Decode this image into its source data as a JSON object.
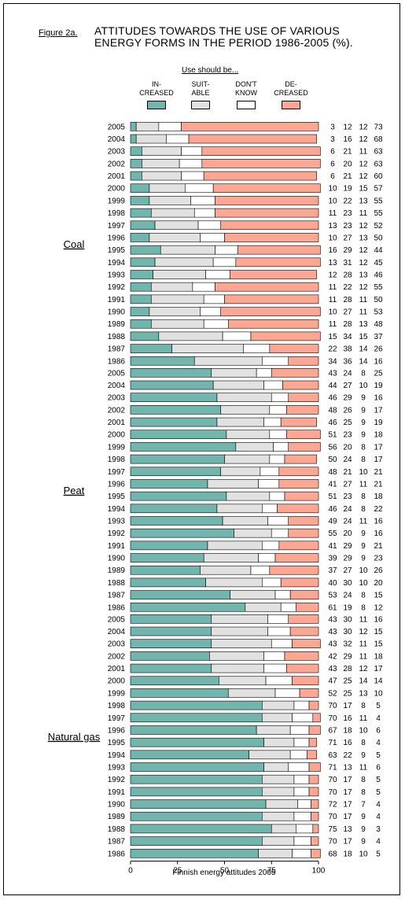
{
  "figure_label": "Figure 2a.",
  "title_lines": [
    "ATTITUDES TOWARDS THE USE OF VARIOUS",
    "ENERGY FORMS IN THE PERIOD 1986-2005 (%)."
  ],
  "legend_heading": "Use should be...",
  "colors": {
    "increased": "#71b5ad",
    "suitable": "#e1e1e1",
    "dont_know": "#ffffff",
    "decreased": "#fca793",
    "edge": "#000000"
  },
  "chart_data": {
    "type": "bar",
    "orientation": "horizontal",
    "stacked": true,
    "xlabel": "Finnish energy attitudes 2005",
    "xlim": [
      0,
      100
    ],
    "xticks": [
      0,
      25,
      50,
      75,
      100
    ],
    "series_names": [
      [
        "IN-",
        "CREASED"
      ],
      [
        "SUIT-",
        "ABLE"
      ],
      [
        "DON'T",
        "KNOW"
      ],
      [
        "DE-",
        "CREASED"
      ]
    ],
    "groups": [
      {
        "name": "Coal",
        "years": [
          "2005",
          "2004",
          "2003",
          "2002",
          "2001",
          "2000",
          "1999",
          "1998",
          "1997",
          "1996",
          "1995",
          "1994",
          "1993",
          "1992",
          "1991",
          "1990",
          "1989",
          "1988",
          "1987",
          "1986"
        ],
        "values": [
          [
            3,
            12,
            12,
            73
          ],
          [
            3,
            16,
            12,
            68
          ],
          [
            6,
            21,
            11,
            63
          ],
          [
            6,
            20,
            12,
            63
          ],
          [
            6,
            21,
            12,
            60
          ],
          [
            10,
            19,
            15,
            57
          ],
          [
            10,
            22,
            13,
            55
          ],
          [
            11,
            23,
            11,
            55
          ],
          [
            13,
            23,
            12,
            52
          ],
          [
            10,
            27,
            13,
            50
          ],
          [
            16,
            29,
            12,
            44
          ],
          [
            13,
            31,
            12,
            45
          ],
          [
            12,
            28,
            13,
            46
          ],
          [
            11,
            22,
            12,
            55
          ],
          [
            11,
            28,
            11,
            50
          ],
          [
            10,
            27,
            11,
            53
          ],
          [
            11,
            28,
            13,
            48
          ],
          [
            15,
            34,
            15,
            37
          ],
          [
            22,
            38,
            14,
            26
          ],
          [
            34,
            36,
            14,
            16
          ]
        ]
      },
      {
        "name": "Peat",
        "years": [
          "2005",
          "2004",
          "2003",
          "2002",
          "2001",
          "2000",
          "1999",
          "1998",
          "1997",
          "1996",
          "1995",
          "1994",
          "1993",
          "1992",
          "1991",
          "1990",
          "1989",
          "1988",
          "1987",
          "1986"
        ],
        "values": [
          [
            43,
            24,
            8,
            25
          ],
          [
            44,
            27,
            10,
            19
          ],
          [
            46,
            29,
            9,
            16
          ],
          [
            48,
            26,
            9,
            17
          ],
          [
            46,
            25,
            9,
            19
          ],
          [
            51,
            23,
            9,
            18
          ],
          [
            56,
            20,
            8,
            17
          ],
          [
            50,
            24,
            8,
            17
          ],
          [
            48,
            21,
            10,
            21
          ],
          [
            41,
            27,
            11,
            21
          ],
          [
            51,
            23,
            8,
            18
          ],
          [
            46,
            24,
            8,
            22
          ],
          [
            49,
            24,
            11,
            16
          ],
          [
            55,
            20,
            9,
            16
          ],
          [
            41,
            29,
            9,
            21
          ],
          [
            39,
            29,
            9,
            23
          ],
          [
            37,
            27,
            10,
            26
          ],
          [
            40,
            30,
            10,
            20
          ],
          [
            53,
            24,
            8,
            15
          ],
          [
            61,
            19,
            8,
            12
          ]
        ]
      },
      {
        "name": "Natural gas",
        "years": [
          "2005",
          "2004",
          "2003",
          "2002",
          "2001",
          "2000",
          "1999",
          "1998",
          "1997",
          "1996",
          "1995",
          "1994",
          "1993",
          "1992",
          "1991",
          "1990",
          "1989",
          "1988",
          "1987",
          "1986"
        ],
        "values": [
          [
            43,
            30,
            11,
            16
          ],
          [
            43,
            30,
            12,
            15
          ],
          [
            43,
            32,
            11,
            15
          ],
          [
            42,
            29,
            11,
            18
          ],
          [
            43,
            28,
            12,
            17
          ],
          [
            47,
            25,
            14,
            14
          ],
          [
            52,
            25,
            13,
            10
          ],
          [
            70,
            17,
            8,
            5
          ],
          [
            70,
            16,
            11,
            4
          ],
          [
            67,
            18,
            10,
            6
          ],
          [
            71,
            16,
            8,
            4
          ],
          [
            63,
            22,
            9,
            5
          ],
          [
            71,
            13,
            11,
            6
          ],
          [
            70,
            17,
            8,
            5
          ],
          [
            70,
            17,
            8,
            5
          ],
          [
            72,
            17,
            7,
            4
          ],
          [
            70,
            17,
            9,
            4
          ],
          [
            75,
            13,
            9,
            3
          ],
          [
            70,
            17,
            9,
            4
          ],
          [
            68,
            18,
            10,
            5
          ]
        ]
      }
    ]
  }
}
